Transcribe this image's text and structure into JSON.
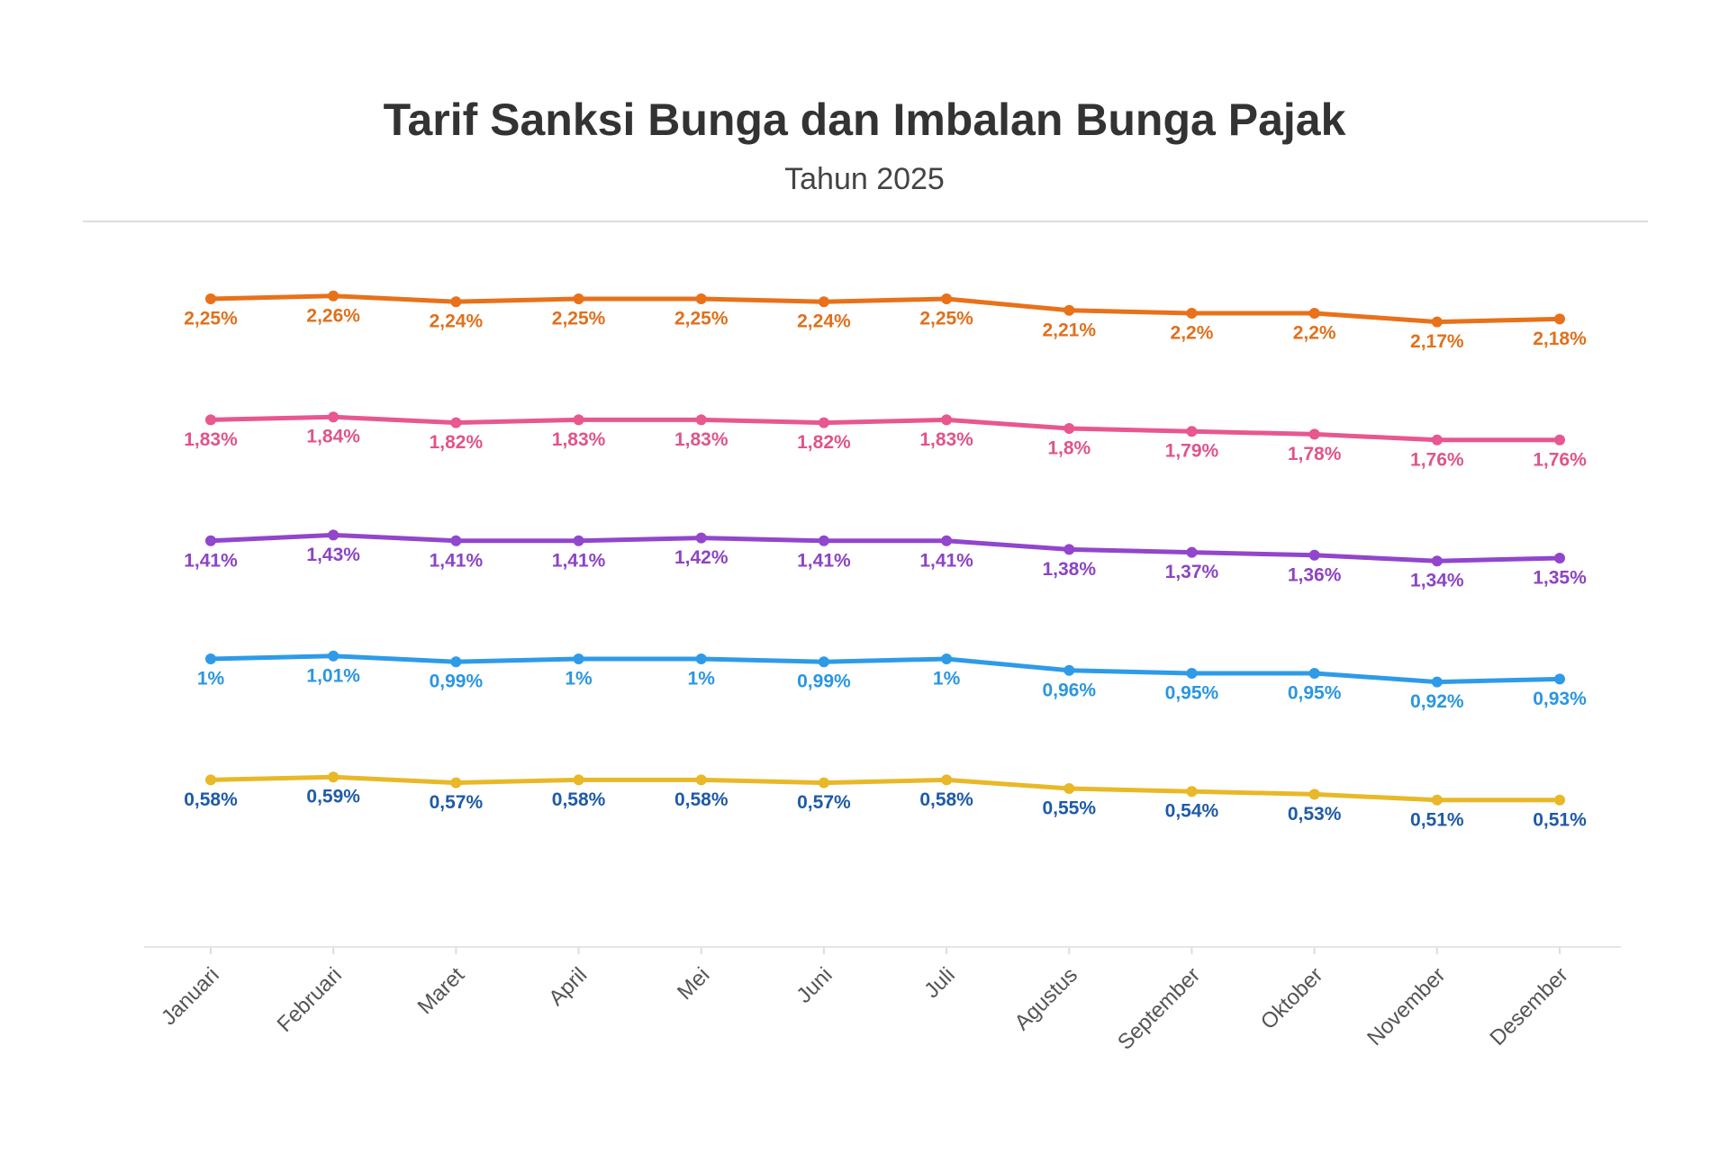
{
  "chart_data": {
    "type": "line",
    "title": "Tarif Sanksi Bunga dan Imbalan Bunga Pajak",
    "subtitle": "Tahun 2025",
    "categories": [
      "Januari",
      "Februari",
      "Maret",
      "April",
      "Mei",
      "Juni",
      "Juli",
      "Agustus",
      "September",
      "Oktober",
      "November",
      "Desember"
    ],
    "ylim": [
      0,
      2.5
    ],
    "series": [
      {
        "color": "#e8711a",
        "label_color": "#e0701c",
        "values": [
          2.25,
          2.26,
          2.24,
          2.25,
          2.25,
          2.24,
          2.25,
          2.21,
          2.2,
          2.2,
          2.17,
          2.18
        ],
        "value_labels": [
          "2,25%",
          "2,26%",
          "2,24%",
          "2,25%",
          "2,25%",
          "2,24%",
          "2,25%",
          "2,21%",
          "2,2%",
          "2,2%",
          "2,17%",
          "2,18%"
        ]
      },
      {
        "color": "#e8578f",
        "label_color": "#e0548a",
        "values": [
          1.83,
          1.84,
          1.82,
          1.83,
          1.83,
          1.82,
          1.83,
          1.8,
          1.79,
          1.78,
          1.76,
          1.76
        ],
        "value_labels": [
          "1,83%",
          "1,84%",
          "1,82%",
          "1,83%",
          "1,83%",
          "1,82%",
          "1,83%",
          "1,8%",
          "1,79%",
          "1,78%",
          "1,76%",
          "1,76%"
        ]
      },
      {
        "color": "#9146cc",
        "label_color": "#8c44c4",
        "values": [
          1.41,
          1.43,
          1.41,
          1.41,
          1.42,
          1.41,
          1.41,
          1.38,
          1.37,
          1.36,
          1.34,
          1.35
        ],
        "value_labels": [
          "1,41%",
          "1,43%",
          "1,41%",
          "1,41%",
          "1,42%",
          "1,41%",
          "1,41%",
          "1,38%",
          "1,37%",
          "1,36%",
          "1,34%",
          "1,35%"
        ]
      },
      {
        "color": "#2e9be8",
        "label_color": "#2b96e0",
        "values": [
          1,
          1.01,
          0.99,
          1,
          1,
          0.99,
          1,
          0.96,
          0.95,
          0.95,
          0.92,
          0.93
        ],
        "value_labels": [
          "1%",
          "1,01%",
          "0,99%",
          "1%",
          "1%",
          "0,99%",
          "1%",
          "0,96%",
          "0,95%",
          "0,95%",
          "0,92%",
          "0,93%"
        ]
      },
      {
        "color": "#e8b828",
        "label_color": "#1f5aa8",
        "values": [
          0.58,
          0.59,
          0.57,
          0.58,
          0.58,
          0.57,
          0.58,
          0.55,
          0.54,
          0.53,
          0.51,
          0.51
        ],
        "value_labels": [
          "0,58%",
          "0,59%",
          "0,57%",
          "0,58%",
          "0,58%",
          "0,57%",
          "0,58%",
          "0,55%",
          "0,54%",
          "0,53%",
          "0,51%",
          "0,51%"
        ]
      }
    ]
  }
}
